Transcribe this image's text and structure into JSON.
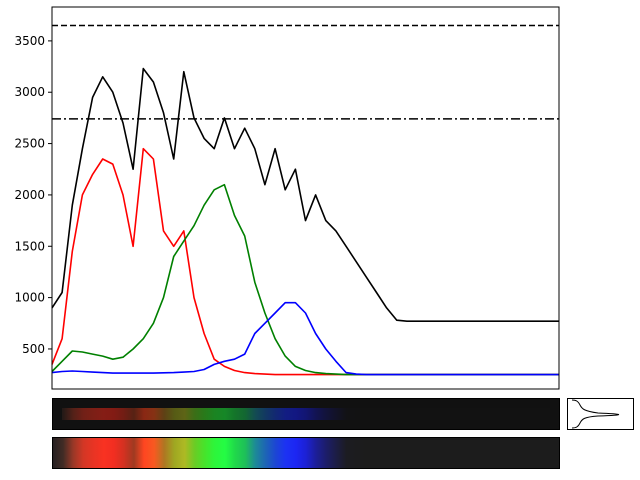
{
  "chart_data": {
    "type": "line",
    "title": "",
    "xlabel": "",
    "ylabel": "",
    "xlim": [
      0,
      500
    ],
    "ylim": [
      110,
      3830
    ],
    "yticks": [
      500,
      1000,
      1500,
      2000,
      2500,
      3000,
      3500
    ],
    "x_ticks_visible": false,
    "grid": false,
    "reference_lines": [
      {
        "style": "dashed",
        "y": 3650,
        "color": "#000000"
      },
      {
        "style": "dashdot",
        "y": 2740,
        "color": "#000000"
      }
    ],
    "series": [
      {
        "color": "#000000",
        "x": [
          0,
          10,
          20,
          30,
          40,
          50,
          60,
          70,
          80,
          90,
          100,
          110,
          120,
          130,
          140,
          150,
          160,
          170,
          180,
          190,
          200,
          210,
          220,
          230,
          240,
          250,
          260,
          270,
          280,
          290,
          300,
          310,
          320,
          330,
          340,
          350,
          360,
          370,
          380,
          390,
          400,
          410,
          420,
          430,
          440,
          450,
          460,
          470,
          480,
          490,
          500
        ],
        "y": [
          900,
          1050,
          1900,
          2450,
          2950,
          3150,
          3000,
          2700,
          2250,
          3230,
          3100,
          2800,
          2350,
          3200,
          2750,
          2550,
          2450,
          2750,
          2450,
          2650,
          2450,
          2100,
          2450,
          2050,
          2250,
          1750,
          2000,
          1750,
          1650,
          1500,
          1350,
          1200,
          1050,
          900,
          780,
          770,
          770,
          770,
          770,
          770,
          770,
          770,
          770,
          770,
          770,
          770,
          770,
          770,
          770,
          770,
          770
        ]
      },
      {
        "color": "#ff0000",
        "x": [
          0,
          10,
          20,
          30,
          40,
          50,
          60,
          70,
          80,
          90,
          100,
          110,
          120,
          130,
          140,
          150,
          160,
          170,
          180,
          190,
          200,
          210,
          220,
          230,
          240,
          250,
          260,
          270,
          280,
          290,
          300,
          310,
          320,
          330,
          340,
          350,
          360,
          370,
          380,
          390,
          400,
          410,
          420,
          430,
          440,
          450,
          460,
          470,
          480,
          490,
          500
        ],
        "y": [
          350,
          600,
          1450,
          2000,
          2200,
          2350,
          2300,
          2000,
          1500,
          2450,
          2350,
          1650,
          1500,
          1650,
          1000,
          650,
          400,
          330,
          290,
          270,
          260,
          255,
          250,
          250,
          250,
          250,
          250,
          250,
          250,
          250,
          250,
          250,
          250,
          250,
          250,
          250,
          250,
          250,
          250,
          250,
          250,
          250,
          250,
          250,
          250,
          250,
          250,
          250,
          250,
          250,
          250
        ]
      },
      {
        "color": "#008000",
        "x": [
          0,
          10,
          20,
          30,
          40,
          50,
          60,
          70,
          80,
          90,
          100,
          110,
          120,
          130,
          140,
          150,
          160,
          170,
          180,
          190,
          200,
          210,
          220,
          230,
          240,
          250,
          260,
          270,
          280,
          290,
          300,
          310,
          320,
          330,
          340,
          350,
          360,
          370,
          380,
          390,
          400,
          410,
          420,
          430,
          440,
          450,
          460,
          470,
          480,
          490,
          500
        ],
        "y": [
          280,
          380,
          480,
          470,
          450,
          430,
          400,
          420,
          500,
          600,
          750,
          1000,
          1400,
          1550,
          1700,
          1900,
          2050,
          2100,
          1800,
          1600,
          1150,
          850,
          600,
          430,
          330,
          290,
          270,
          260,
          255,
          250,
          250,
          250,
          250,
          250,
          250,
          250,
          250,
          250,
          250,
          250,
          250,
          250,
          250,
          250,
          250,
          250,
          250,
          250,
          250,
          250,
          250
        ]
      },
      {
        "color": "#0000ff",
        "x": [
          0,
          10,
          20,
          30,
          40,
          50,
          60,
          70,
          80,
          90,
          100,
          110,
          120,
          130,
          140,
          150,
          160,
          170,
          180,
          190,
          200,
          210,
          220,
          230,
          240,
          250,
          260,
          270,
          280,
          290,
          300,
          310,
          320,
          330,
          340,
          350,
          360,
          370,
          380,
          390,
          400,
          410,
          420,
          430,
          440,
          450,
          460,
          470,
          480,
          490,
          500
        ],
        "y": [
          270,
          280,
          285,
          280,
          275,
          270,
          265,
          265,
          265,
          265,
          265,
          268,
          270,
          275,
          280,
          300,
          350,
          380,
          400,
          450,
          650,
          750,
          850,
          950,
          950,
          850,
          650,
          500,
          380,
          270,
          255,
          250,
          250,
          250,
          250,
          250,
          250,
          250,
          250,
          250,
          250,
          250,
          250,
          250,
          250,
          250,
          250,
          250,
          250,
          250,
          250
        ]
      }
    ]
  },
  "strips": {
    "raw_spectrum": {
      "name": "raw spectrum strip",
      "background": "#111111"
    },
    "enhanced_spectrum": {
      "name": "enhanced spectrum strip",
      "background": "#1c1c1c"
    },
    "profile_inset": {
      "name": "slit profile inset"
    }
  }
}
